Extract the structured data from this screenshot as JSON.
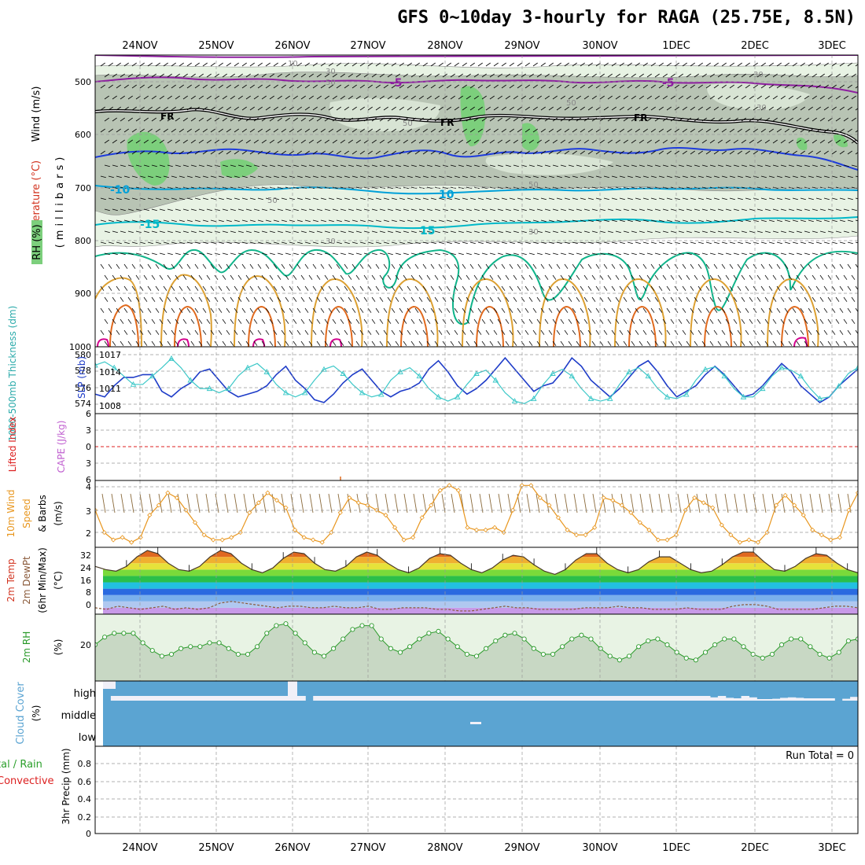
{
  "title": "GFS 0~10day 3-hourly for RAGA (25.75E, 8.5N)",
  "dates": [
    "24NOV",
    "25NOV",
    "26NOV",
    "27NOV",
    "28NOV",
    "29NOV",
    "30NOV",
    "1DEC",
    "2DEC",
    "3DEC"
  ],
  "colors": {
    "grid": "#999999",
    "rh_dark": "#b8c4b4",
    "rh_light": "#e8f3e4",
    "rh_green": "#7ccf7c",
    "minus5": "#8e1ea0",
    "fr": "#000000",
    "blue_line": "#1e3cdc",
    "cyan_line": "#00a0d8",
    "teal_line": "#00a078",
    "green_teal": "#10b48a",
    "orange_line": "#dca032",
    "orange_dark": "#e06a1e",
    "magenta": "#d2008c",
    "slp": "#1e3cc8",
    "thickness": "#3cc8c8",
    "wind": "#e8961e",
    "temp_fill": "#d22a10",
    "rh2m": "#2a9a2a",
    "cloud": "#5ba4d2",
    "precip_total": "#2ca02c",
    "precip_conv": "#dc2020"
  },
  "panels": {
    "upper": {
      "ylabel_wind": "Wind (m/s)",
      "ylabel_temp": "Temperature (°C)",
      "ylabel_rh": "RH (%)",
      "ylabel_mb": "(millibars)",
      "yticks": [
        "500",
        "600",
        "700",
        "800",
        "900",
        "1000"
      ],
      "contour_labels": [
        "-5",
        "-5",
        "FR",
        "FR",
        "FR",
        "-10",
        "10",
        "-15",
        "15",
        "10",
        "30",
        "50",
        "30",
        "50",
        "50",
        "50",
        "50",
        "30",
        "30",
        "30"
      ]
    },
    "slp": {
      "ylabel_thick": "1000-500mb Thickness (dm)",
      "ylabel_slp": "SLP (mb)",
      "left_ticks": [
        "580",
        "578",
        "576",
        "574"
      ],
      "right_ticks": [
        "1017",
        "1014",
        "1011",
        "1008"
      ]
    },
    "cape": {
      "ylabel_li": "Lifted Index",
      "ylabel_cape": "CAPE (J/kg)",
      "ticks": [
        "6",
        "3",
        "0",
        "3",
        "6"
      ]
    },
    "wind10": {
      "ylabel_1": "10m Wind",
      "ylabel_2": "Speed",
      "ylabel_3": "& Barbs",
      "ylabel_units": "(m/s)",
      "ticks": [
        "4",
        "3",
        "2"
      ]
    },
    "temp2m": {
      "ylabel_1": "2m Temp",
      "ylabel_2": "2m DewPt",
      "ylabel_3": "(6hr Min/Max)",
      "ylabel_units": "(°C)",
      "ticks": [
        "32",
        "24",
        "16",
        "8",
        "0"
      ]
    },
    "rh2m": {
      "ylabel_1": "2m RH",
      "ylabel_units": "(%)",
      "ticks": [
        "20"
      ]
    },
    "cloud": {
      "ylabel_1": "Cloud Cover",
      "ylabel_units": "(%)",
      "levels": [
        "high",
        "middle",
        "low"
      ]
    },
    "precip": {
      "ylabel_1": "tal / Rain",
      "ylabel_2": "Convective",
      "ylabel_3": "3hr Precip (mm)",
      "ticks": [
        "0.8",
        "0.6",
        "0.4",
        "0.2",
        "0"
      ],
      "run_total": "Run Total = 0"
    }
  },
  "chart_data": [
    {
      "type": "line",
      "panel": "1000-500mb Thickness / SLP",
      "series": [
        {
          "name": "SLP (mb)",
          "values": [
            1009.5,
            1009,
            1011,
            1012.5,
            1012.5,
            1013,
            1013,
            1010,
            1009,
            1010.5,
            1011.5,
            1013.5,
            1014,
            1012,
            1010,
            1009,
            1009.5,
            1010,
            1011,
            1013,
            1014.5,
            1012,
            1010.5,
            1008.5,
            1008,
            1009.5,
            1011.5,
            1013,
            1014,
            1012,
            1010,
            1009,
            1010,
            1010.5,
            1011.5,
            1014,
            1015.5,
            1013.5,
            1011,
            1009.5,
            1010.5,
            1012,
            1014,
            1016,
            1014,
            1012,
            1010,
            1011,
            1011.5,
            1013.5,
            1016,
            1014.5,
            1012,
            1010.5,
            1009,
            1010.5,
            1012.5,
            1014.5,
            1015.5,
            1013.5,
            1011,
            1009,
            1010,
            1011,
            1013,
            1014.5,
            1013,
            1011,
            1009,
            1009.5,
            1011,
            1013,
            1015,
            1013.5,
            1011,
            1009.5,
            1008,
            1009,
            1011,
            1012.5,
            1014
          ]
        },
        {
          "name": "1000-500mb Thickness (dm)",
          "values": [
            578.8,
            579.2,
            578.5,
            577.5,
            576.5,
            576.5,
            577.5,
            578.5,
            579.6,
            578.5,
            577,
            576,
            576,
            575.5,
            576,
            577.5,
            578.5,
            579,
            578,
            576.5,
            575.5,
            575,
            575.5,
            577,
            578.3,
            578.7,
            577.8,
            576.5,
            575.5,
            575,
            575.3,
            577,
            578,
            578.5,
            577.5,
            576,
            575,
            574.5,
            575,
            576.5,
            577.8,
            578.2,
            577,
            575.5,
            574.5,
            574.2,
            574.8,
            576.5,
            577.8,
            578.3,
            577.5,
            576,
            574.8,
            574.5,
            574.8,
            576.5,
            578,
            578.5,
            577.5,
            576,
            575,
            574.8,
            575.3,
            577,
            578.3,
            578.6,
            577.5,
            576,
            575,
            575,
            576,
            577.5,
            578.5,
            578.2,
            577.5,
            576,
            574.8,
            575,
            576.3,
            577.8,
            578.5
          ]
        }
      ],
      "ylim_left": [
        573,
        581
      ],
      "ylim_right": [
        1006,
        1018
      ]
    },
    {
      "type": "line",
      "panel": "10m Wind Speed",
      "series": [
        {
          "name": "10m Wind Speed (m/s)",
          "values": [
            3.0,
            2.1,
            1.8,
            1.9,
            1.7,
            1.9,
            2.8,
            3.2,
            3.7,
            3.5,
            3.0,
            2.5,
            2.0,
            1.8,
            1.8,
            1.9,
            2.1,
            2.9,
            3.3,
            3.7,
            3.4,
            3.1,
            2.2,
            1.9,
            1.8,
            1.7,
            2.1,
            2.9,
            3.5,
            3.3,
            3.2,
            3.0,
            2.8,
            2.3,
            1.8,
            1.9,
            2.7,
            3.2,
            3.8,
            4.0,
            3.8,
            2.3,
            2.2,
            2.2,
            2.3,
            2.1,
            3.0,
            4.0,
            4.0,
            3.5,
            3.2,
            2.7,
            2.2,
            2.0,
            2.0,
            2.3,
            3.5,
            3.4,
            3.2,
            2.9,
            2.5,
            2.2,
            1.8,
            1.8,
            2.0,
            3.0,
            3.5,
            3.3,
            3.1,
            2.4,
            2.0,
            1.7,
            1.8,
            1.7,
            2.1,
            3.2,
            3.6,
            3.2,
            2.8,
            2.2,
            2.0,
            1.8,
            1.9,
            3.0,
            3.7
          ]
        }
      ],
      "ylim": [
        1.5,
        4.2
      ]
    },
    {
      "type": "area",
      "panel": "2m Temp / 2m DewPt",
      "series": [
        {
          "name": "2m Temp (°C)",
          "values": [
            24,
            22,
            21,
            24,
            30,
            34,
            32,
            26,
            22,
            21,
            24,
            30,
            34,
            32,
            26,
            22,
            20,
            23,
            29,
            33,
            32,
            26,
            22,
            21,
            24,
            30,
            33,
            31,
            26,
            22,
            20,
            23,
            29,
            32,
            31,
            26,
            22,
            20,
            23,
            28,
            31,
            30,
            25,
            21,
            19,
            22,
            28,
            32,
            32,
            26,
            22,
            20,
            22,
            27,
            30,
            30,
            26,
            22,
            20,
            21,
            25,
            30,
            33,
            33,
            27,
            22,
            21,
            24,
            29,
            32,
            31,
            26,
            22,
            20
          ],
          "note": ""
        },
        {
          "name": "2m DewPt (°C)",
          "values": [
            -2,
            -3,
            -1,
            -2,
            -3,
            -2,
            -1,
            -3,
            -2,
            -3,
            -2,
            1,
            2,
            1,
            0,
            -1,
            -2,
            -1,
            -1,
            -2,
            -2,
            -1,
            -2,
            -2,
            -1,
            -3,
            -3,
            -2,
            -2,
            -2,
            -3,
            -3,
            -4,
            -4,
            -3,
            -2,
            -1,
            -2,
            -2,
            -3,
            -3,
            -3,
            -3,
            -2,
            -2,
            -2,
            -1,
            -2,
            -2,
            -3,
            -3,
            -3,
            -2,
            -3,
            -3,
            -3,
            -1,
            0,
            0,
            -1,
            -3,
            -3,
            -3,
            -3,
            -2,
            -1,
            -1,
            -2
          ]
        }
      ],
      "ylim": [
        -6,
        36
      ]
    },
    {
      "type": "line",
      "panel": "2m RH",
      "series": [
        {
          "name": "2m RH (%)",
          "values": [
            19,
            23,
            25,
            25,
            25,
            20,
            16,
            13,
            14,
            17,
            18,
            18,
            20,
            20,
            17,
            14,
            14,
            18,
            25,
            29,
            30,
            25,
            20,
            15,
            13,
            17,
            22,
            27,
            29,
            29,
            22,
            17,
            15,
            18,
            22,
            25,
            26,
            22,
            18,
            14,
            13,
            17,
            21,
            24,
            25,
            22,
            17,
            14,
            14,
            18,
            22,
            24,
            22,
            17,
            13,
            11,
            13,
            18,
            21,
            22,
            19,
            15,
            12,
            11,
            15,
            19,
            22,
            22,
            18,
            14,
            12,
            14,
            19,
            22,
            22,
            18,
            14,
            12,
            15,
            21,
            22
          ]
        }
      ],
      "ylim": [
        0,
        35
      ]
    },
    {
      "type": "bar",
      "panel": "Cloud Cover",
      "series": [
        {
          "name": "high (%)",
          "values": [
            100,
            0,
            0,
            0,
            0,
            0,
            0,
            0,
            0,
            0,
            0,
            0,
            0,
            0,
            0,
            0,
            0,
            0,
            0,
            0,
            0,
            0,
            0,
            0,
            0,
            0,
            100,
            0,
            0,
            0,
            0,
            0,
            0,
            0,
            0,
            0,
            0,
            0,
            0,
            0,
            0,
            0,
            0,
            0,
            0,
            0,
            0,
            0,
            0,
            0,
            0,
            0,
            0,
            0,
            0,
            0,
            0,
            0,
            0,
            0,
            0,
            0,
            0,
            0,
            0,
            0,
            0,
            0,
            0,
            0,
            0,
            0,
            0,
            0,
            0,
            0,
            0,
            0,
            30,
            0,
            40,
            50,
            0,
            30,
            80,
            90,
            60,
            40,
            30,
            40,
            50,
            50,
            50,
            50,
            100,
            60,
            20
          ]
        }
      ]
    }
  ]
}
